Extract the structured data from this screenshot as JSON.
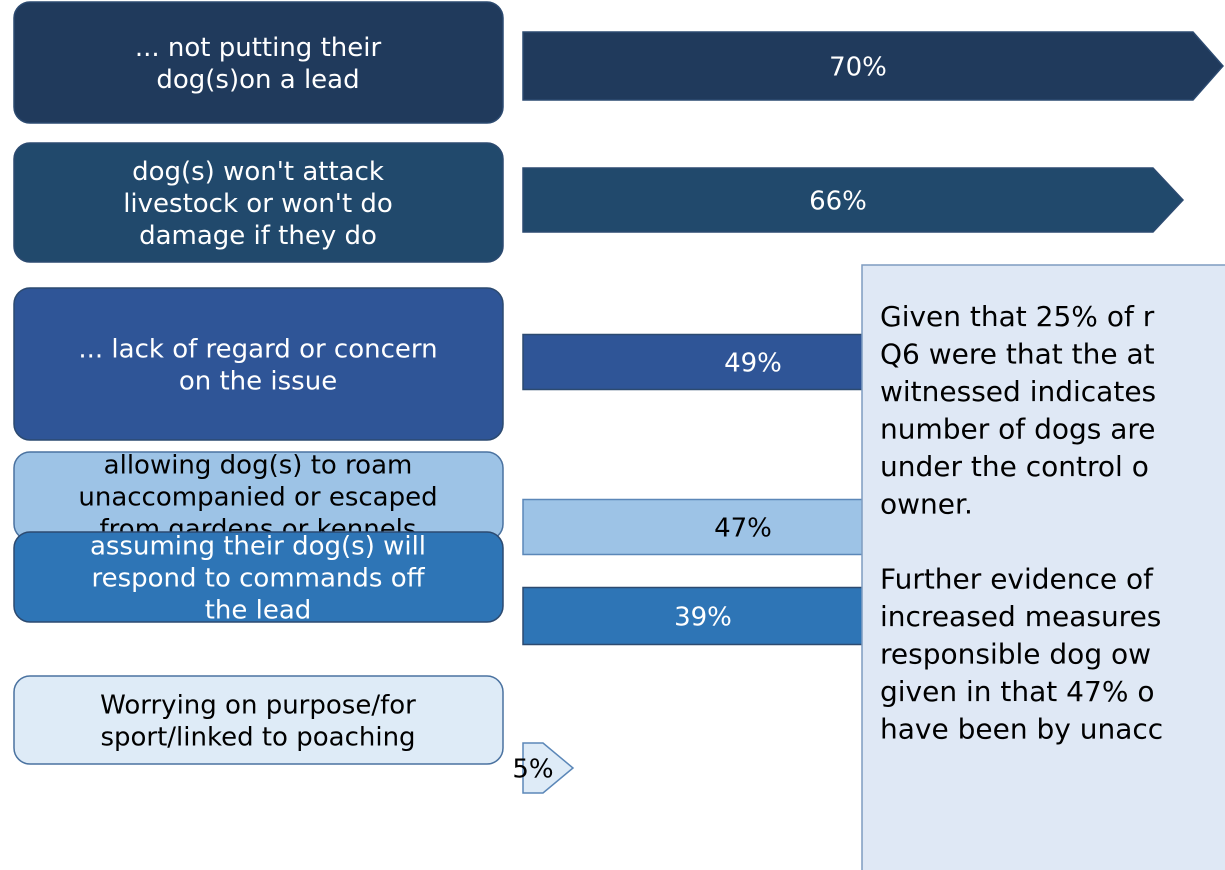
{
  "chart_data": {
    "type": "bar",
    "categories": [
      [
        "... not putting their",
        "dog(s)on a lead"
      ],
      [
        "dog(s) won't attack",
        "livestock or won't do",
        "damage if they do"
      ],
      [
        "... lack of regard or concern",
        "on the issue"
      ],
      [
        "allowing dog(s) to roam",
        "unaccompanied or escaped",
        "from gardens or kennels"
      ],
      [
        "assuming their dog(s) will",
        "respond to commands off",
        "the lead"
      ],
      [
        "Worrying on purpose/for",
        "sport/linked to poaching"
      ]
    ],
    "values": [
      70,
      66,
      49,
      47,
      39,
      5
    ],
    "value_labels": [
      "70%",
      "66%",
      "49%",
      "47%",
      "39%",
      "5%"
    ],
    "colors": [
      "#203a5c",
      "#21496c",
      "#2f5597",
      "#9dc3e6",
      "#2e75b6",
      "#deebf7"
    ],
    "annotation": [
      [
        "Given that 25% of r",
        "Q6 were that the at",
        "witnessed indicates",
        "number of dogs are",
        "under the control o",
        "owner."
      ],
      [
        "Further evidence of",
        "increased measures",
        "responsible dog ow",
        "given in that 47% o",
        "have been by unacc"
      ]
    ]
  }
}
